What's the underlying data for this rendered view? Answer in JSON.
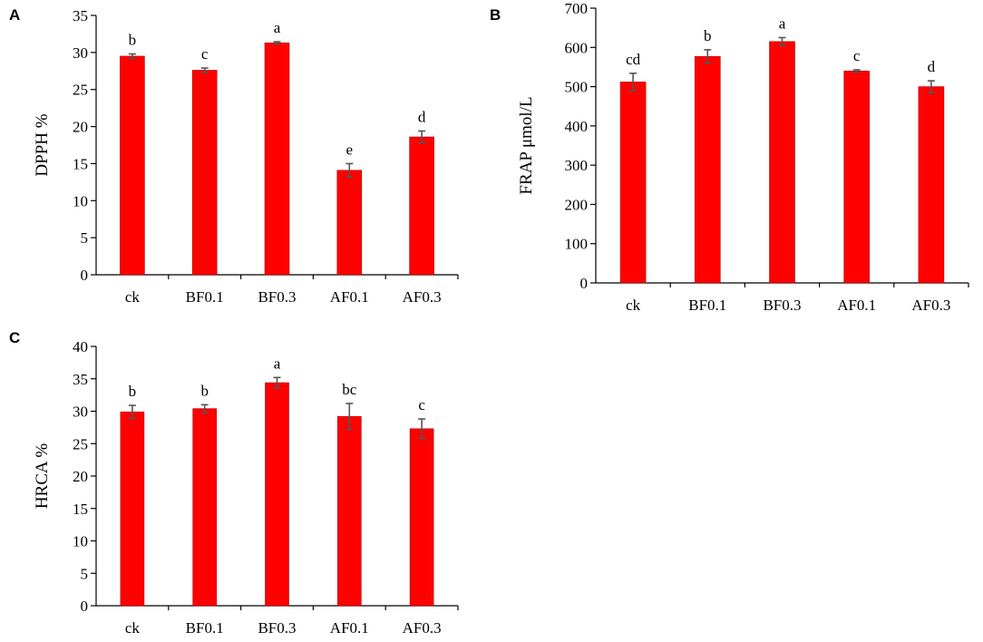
{
  "chart_data": [
    {
      "panel": "A",
      "type": "bar",
      "categories": [
        "ck",
        "BF0.1",
        "BF0.3",
        "AF0.1",
        "AF0.3"
      ],
      "values": [
        29.5,
        27.6,
        31.3,
        14.1,
        18.6
      ],
      "errors": [
        0.3,
        0.3,
        0.15,
        0.9,
        0.8
      ],
      "significance": [
        "b",
        "c",
        "a",
        "e",
        "d"
      ],
      "ylabel": "DPPH %",
      "xlabel": "",
      "ylim": [
        0,
        35
      ],
      "yticks": [
        0,
        5,
        10,
        15,
        20,
        25,
        30,
        35
      ],
      "bar_color": "#ff0000",
      "grid": false
    },
    {
      "panel": "B",
      "type": "bar",
      "categories": [
        "ck",
        "BF0.1",
        "BF0.3",
        "AF0.1",
        "AF0.3"
      ],
      "values": [
        512,
        577,
        615,
        540,
        500
      ],
      "errors": [
        22,
        17,
        10,
        3,
        15
      ],
      "significance": [
        "cd",
        "b",
        "a",
        "c",
        "d"
      ],
      "ylabel": "FRAP μmol/L",
      "xlabel": "",
      "ylim": [
        0,
        700
      ],
      "yticks": [
        0,
        100,
        200,
        300,
        400,
        500,
        600,
        700
      ],
      "bar_color": "#ff0000",
      "grid": false
    },
    {
      "panel": "C",
      "type": "bar",
      "categories": [
        "ck",
        "BF0.1",
        "BF0.3",
        "AF0.1",
        "AF0.3"
      ],
      "values": [
        29.9,
        30.4,
        34.4,
        29.2,
        27.3
      ],
      "errors": [
        1.0,
        0.6,
        0.8,
        2.0,
        1.5
      ],
      "significance": [
        "b",
        "b",
        "a",
        "bc",
        "c"
      ],
      "ylabel": "HRCA %",
      "xlabel": "",
      "ylim": [
        0,
        40
      ],
      "yticks": [
        0,
        5,
        10,
        15,
        20,
        25,
        30,
        35,
        40
      ],
      "bar_color": "#ff0000",
      "grid": false
    }
  ]
}
